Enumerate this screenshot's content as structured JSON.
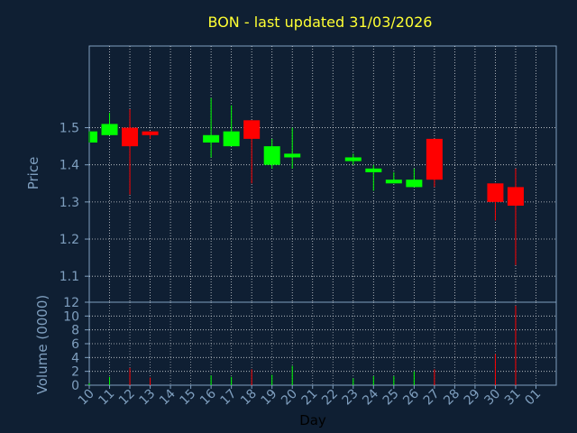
{
  "chart_data": {
    "type": "candlestick",
    "title": "BON - last updated 31/03/2026",
    "xlabel": "Day",
    "x_ticks": [
      "10",
      "11",
      "12",
      "13",
      "14",
      "15",
      "16",
      "17",
      "18",
      "19",
      "20",
      "21",
      "22",
      "23",
      "24",
      "25",
      "26",
      "27",
      "28",
      "29",
      "30",
      "31",
      "01"
    ],
    "price_panel": {
      "ylabel": "Price",
      "ylim": [
        1.03,
        1.72
      ],
      "y_ticks": [
        "1.1",
        "1.2",
        "1.3",
        "1.4",
        "1.5"
      ],
      "grid": true
    },
    "volume_panel": {
      "ylabel": "Volume (0000)",
      "ylim": [
        0,
        12
      ],
      "y_ticks": [
        "0",
        "2",
        "4",
        "6",
        "8",
        "10",
        "12"
      ],
      "grid": true
    },
    "candles": [
      {
        "day": "10",
        "open": 1.46,
        "close": 1.49,
        "high": 1.49,
        "low": 1.46,
        "volume": 0.3
      },
      {
        "day": "11",
        "open": 1.48,
        "close": 1.51,
        "high": 1.54,
        "low": 1.48,
        "volume": 1.2
      },
      {
        "day": "12",
        "open": 1.5,
        "close": 1.45,
        "high": 1.55,
        "low": 1.32,
        "volume": 2.5
      },
      {
        "day": "13",
        "open": 1.49,
        "close": 1.48,
        "high": 1.49,
        "low": 1.47,
        "volume": 1.1
      },
      {
        "day": "16",
        "open": 1.46,
        "close": 1.48,
        "high": 1.58,
        "low": 1.42,
        "volume": 1.4
      },
      {
        "day": "17",
        "open": 1.45,
        "close": 1.49,
        "high": 1.56,
        "low": 1.45,
        "volume": 1.2
      },
      {
        "day": "18",
        "open": 1.52,
        "close": 1.47,
        "high": 1.52,
        "low": 1.35,
        "volume": 2.3
      },
      {
        "day": "19",
        "open": 1.4,
        "close": 1.45,
        "high": 1.47,
        "low": 1.39,
        "volume": 1.5
      },
      {
        "day": "20",
        "open": 1.42,
        "close": 1.43,
        "high": 1.5,
        "low": 1.39,
        "volume": 2.8
      },
      {
        "day": "23",
        "open": 1.41,
        "close": 1.42,
        "high": 1.43,
        "low": 1.4,
        "volume": 1.0
      },
      {
        "day": "24",
        "open": 1.38,
        "close": 1.39,
        "high": 1.4,
        "low": 1.33,
        "volume": 1.3
      },
      {
        "day": "25",
        "open": 1.35,
        "close": 1.36,
        "high": 1.38,
        "low": 1.35,
        "volume": 1.3
      },
      {
        "day": "26",
        "open": 1.34,
        "close": 1.36,
        "high": 1.39,
        "low": 1.34,
        "volume": 2.0
      },
      {
        "day": "27",
        "open": 1.47,
        "close": 1.36,
        "high": 1.47,
        "low": 1.34,
        "volume": 2.3
      },
      {
        "day": "30",
        "open": 1.35,
        "close": 1.3,
        "high": 1.35,
        "low": 1.25,
        "volume": 4.5
      },
      {
        "day": "31",
        "open": 1.34,
        "close": 1.29,
        "high": 1.39,
        "low": 1.13,
        "volume": 11.5
      }
    ]
  },
  "colors": {
    "background": "#0f1f33",
    "panel": "#0f1f33",
    "axis": "#7f9fbf",
    "grid": "#ffffff",
    "title": "#ffff33",
    "up": "#00ff00",
    "down": "#ff0000",
    "label": "#7f9fbf"
  }
}
